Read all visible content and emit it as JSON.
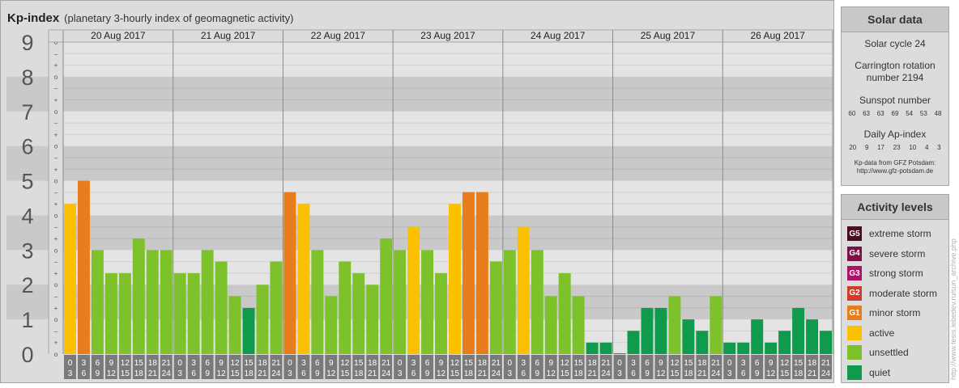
{
  "header": {
    "title": "Kp-index",
    "subtitle": "(planetary 3-hourly index of geomagnetic activity)"
  },
  "chart_data": {
    "type": "bar",
    "ylim": [
      0,
      9
    ],
    "y_major_ticks": [
      "0",
      "1",
      "2",
      "3",
      "4",
      "5",
      "6",
      "7",
      "8",
      "9"
    ],
    "y_minor_labels": [
      "–",
      "o",
      "+"
    ],
    "days": [
      "20 Aug 2017",
      "21 Aug 2017",
      "22 Aug 2017",
      "23 Aug 2017",
      "24 Aug 2017",
      "25 Aug 2017",
      "26 Aug 2017"
    ],
    "interval_labels": [
      [
        "0",
        "3"
      ],
      [
        "3",
        "6"
      ],
      [
        "6",
        "9"
      ],
      [
        "9",
        "12"
      ],
      [
        "12",
        "15"
      ],
      [
        "15",
        "18"
      ],
      [
        "18",
        "21"
      ],
      [
        "21",
        "24"
      ]
    ],
    "values": [
      [
        4.33,
        5.0,
        3.0,
        2.33,
        2.33,
        3.33,
        3.0,
        3.0
      ],
      [
        2.33,
        2.33,
        3.0,
        2.67,
        1.67,
        1.33,
        2.0,
        2.67
      ],
      [
        4.67,
        4.33,
        3.0,
        1.67,
        2.67,
        2.33,
        2.0,
        3.33
      ],
      [
        3.0,
        3.67,
        3.0,
        2.33,
        4.33,
        4.67,
        4.67,
        2.67
      ],
      [
        3.0,
        3.67,
        3.0,
        1.67,
        2.33,
        1.67,
        0.33,
        0.33
      ],
      [
        0.0,
        0.67,
        1.33,
        1.33,
        1.67,
        1.0,
        0.67,
        1.67
      ],
      [
        0.33,
        0.33,
        1.0,
        0.33,
        0.67,
        1.33,
        1.0,
        0.67
      ]
    ]
  },
  "colors": {
    "quiet": "#109a4b",
    "unsettled": "#7dc22a",
    "active": "#fbc100",
    "minor_storm": "#e87d1e",
    "moderate_storm": "#d03b2c",
    "strong_storm": "#b01167",
    "severe_storm": "#7a1147",
    "extreme_storm": "#4b0a25"
  },
  "solar": {
    "title": "Solar data",
    "cycle": "Solar cycle 24",
    "rotation_line1": "Carrington rotation",
    "rotation_line2": "number 2194",
    "sunspot_title": "Sunspot number",
    "sunspot_values": [
      "60",
      "63",
      "63",
      "69",
      "54",
      "53",
      "48"
    ],
    "ap_title": "Daily Ap-index",
    "ap_values": [
      "20",
      "9",
      "17",
      "23",
      "10",
      "4",
      "3"
    ],
    "note_line1": "Kp-data from GFZ Potsdam:",
    "note_line2": "http://www.gfz-potsdam.de"
  },
  "activity": {
    "title": "Activity levels",
    "levels": [
      {
        "code": "G5",
        "label": "extreme storm"
      },
      {
        "code": "G4",
        "label": "severe storm"
      },
      {
        "code": "G3",
        "label": "strong storm"
      },
      {
        "code": "G2",
        "label": "moderate storm"
      },
      {
        "code": "G1",
        "label": "minor storm"
      },
      {
        "code": "",
        "label": "active"
      },
      {
        "code": "",
        "label": "unsettled"
      },
      {
        "code": "",
        "label": "quiet"
      }
    ]
  },
  "watermark": "http://www.tesis.lebedev.ru/sun_archive.php"
}
